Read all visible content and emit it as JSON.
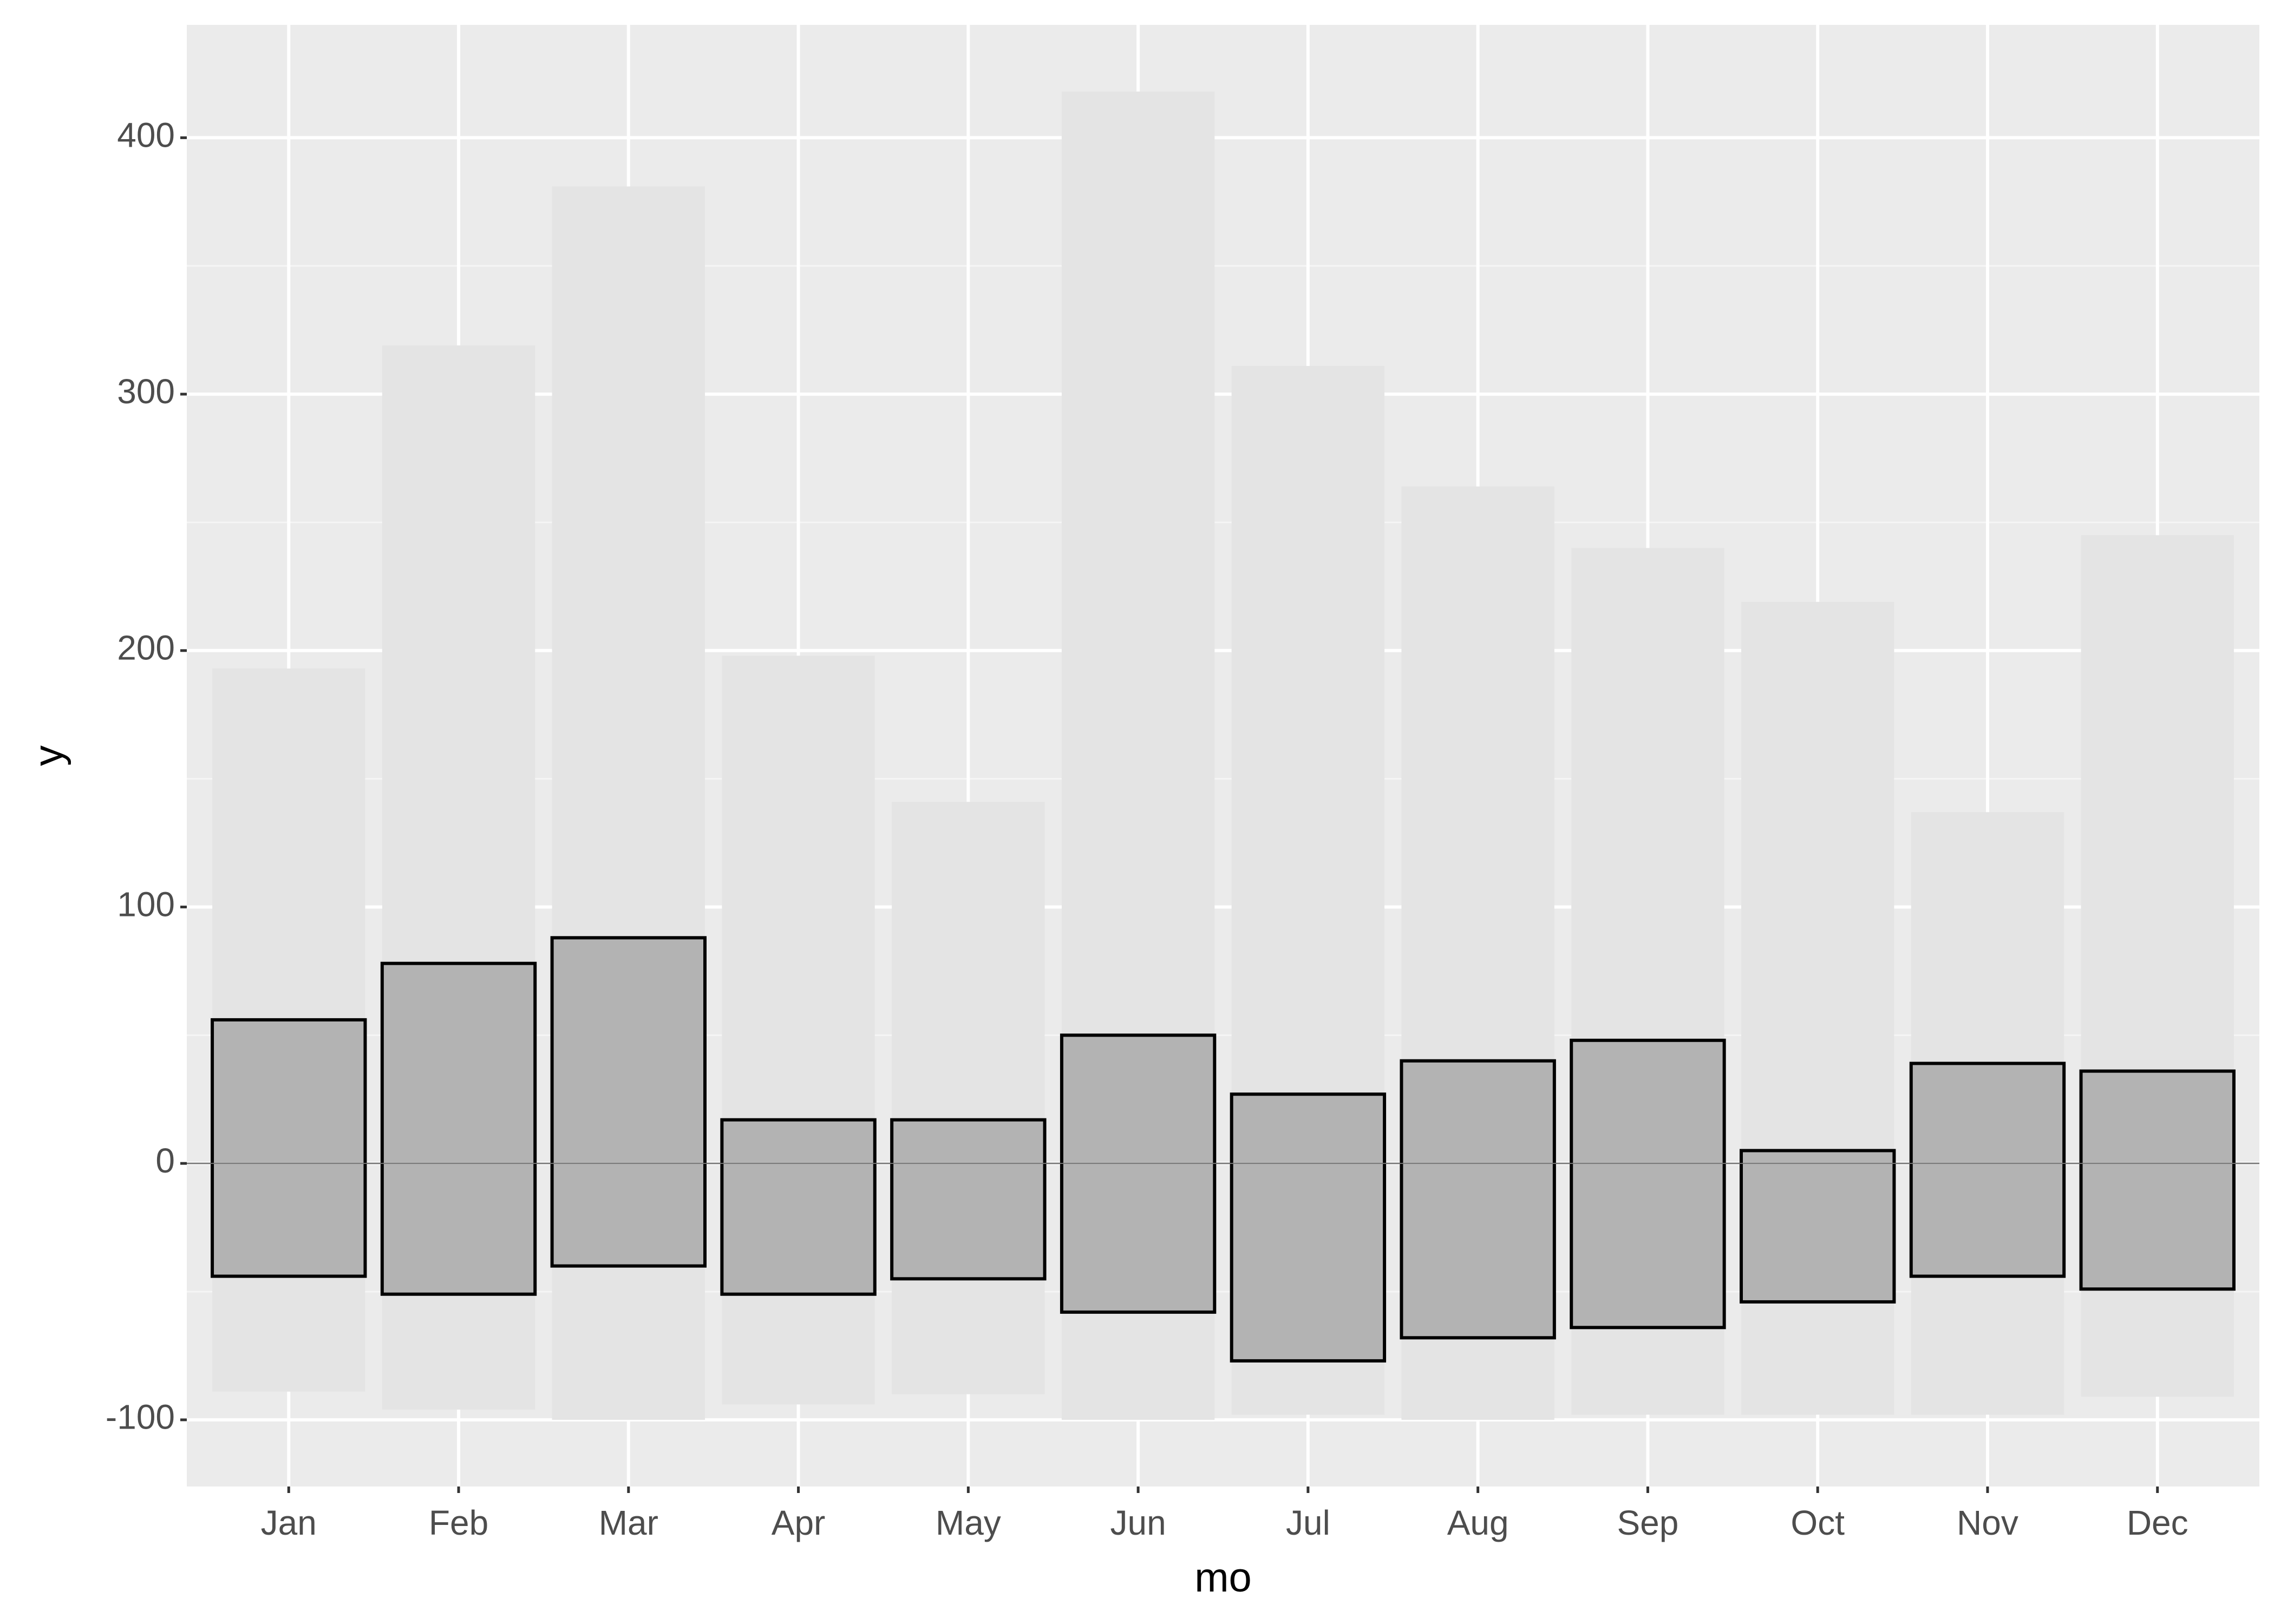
{
  "chart_data": {
    "type": "range_bar",
    "x_label": "mo",
    "y_label": "y",
    "categories": [
      "Jan",
      "Feb",
      "Mar",
      "Apr",
      "May",
      "Jun",
      "Jul",
      "Aug",
      "Sep",
      "Oct",
      "Nov",
      "Dec"
    ],
    "series": [
      {
        "color": "#e4e4e4",
        "low": [
          -89,
          -96,
          -100,
          -94,
          -90,
          -100,
          -98,
          -100,
          -98,
          -98,
          -98,
          -91
        ],
        "high": [
          193,
          319,
          381,
          198,
          141,
          418,
          311,
          264,
          240,
          219,
          137,
          245
        ]
      },
      {
        "color": "#b3b3b3",
        "border": "#000000",
        "low": [
          -44,
          -51,
          -40,
          -51,
          -45,
          -58,
          -77,
          -68,
          -64,
          -54,
          -44,
          -49
        ],
        "high": [
          56,
          78,
          88,
          17,
          17,
          50,
          27,
          40,
          48,
          5,
          39,
          36
        ]
      }
    ],
    "hline": 0,
    "ylim": [
      -126,
      444
    ],
    "yticks": [
      -100,
      0,
      100,
      200,
      300,
      400
    ],
    "grid": true
  }
}
